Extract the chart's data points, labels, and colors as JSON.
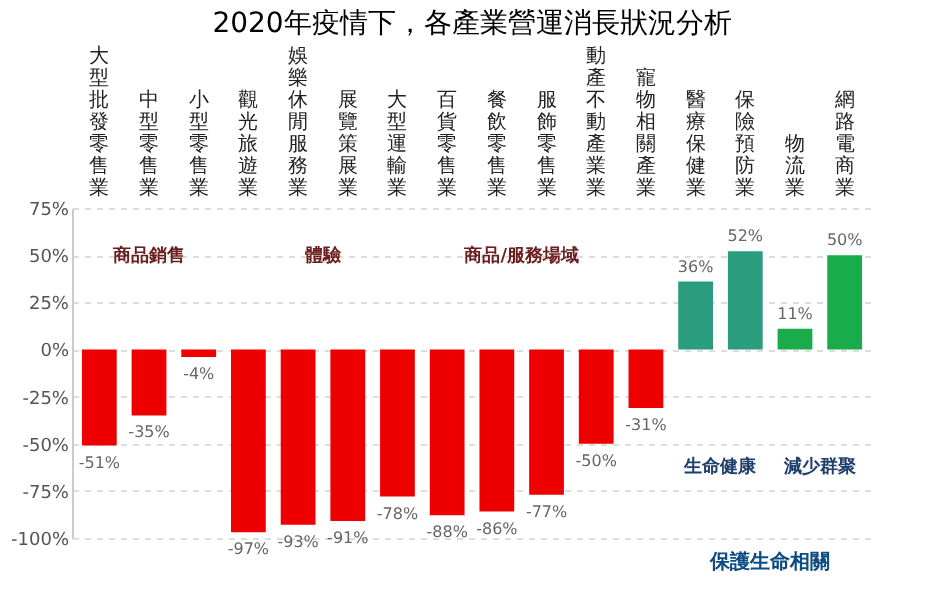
{
  "chart_data": {
    "type": "bar",
    "title": "2020年疫情下，各產業營運消長狀況分析",
    "categories": [
      "大型批發零售業",
      "中型零售業",
      "小型零售業",
      "觀光旅遊業",
      "娛樂休閒服務業",
      "展覽策展業",
      "大型運輸業",
      "百貨零售業",
      "餐飲零售業",
      "服飾零售業",
      "動產不動產業業",
      "寵物相關產業",
      "醫療保健業",
      "保險預防業",
      "物流業",
      "網路電商業"
    ],
    "values": [
      -51,
      -35,
      -4,
      -97,
      -93,
      -91,
      -78,
      -88,
      -86,
      -77,
      -50,
      -31,
      36,
      52,
      11,
      50
    ],
    "value_labels": [
      "-51%",
      "-35%",
      "-4%",
      "-97%",
      "-93%",
      "-91%",
      "-78%",
      "-88%",
      "-86%",
      "-77%",
      "-50%",
      "-31%",
      "36%",
      "52%",
      "11%",
      "50%"
    ],
    "colors": [
      "#ee0000",
      "#ee0000",
      "#ee0000",
      "#ee0000",
      "#ee0000",
      "#ee0000",
      "#ee0000",
      "#ee0000",
      "#ee0000",
      "#ee0000",
      "#ee0000",
      "#ee0000",
      "#2a9d7e",
      "#2a9d7e",
      "#1aab4a",
      "#1aab4a"
    ],
    "ylim": [
      -100,
      75
    ],
    "yticks": [
      {
        "value": -100,
        "label": "-100%"
      },
      {
        "value": -75,
        "label": "-75%"
      },
      {
        "value": -50,
        "label": "-50%"
      },
      {
        "value": -25,
        "label": "-25%"
      },
      {
        "value": 0,
        "label": "0%"
      },
      {
        "value": 25,
        "label": "25%"
      },
      {
        "value": 50,
        "label": "50%"
      },
      {
        "value": 75,
        "label": "75%"
      }
    ],
    "grid": "y",
    "annotations": [
      "商品銷售",
      "體驗",
      "商品/服務場域",
      "生命健康",
      "減少群聚",
      "保護生命相關"
    ]
  }
}
